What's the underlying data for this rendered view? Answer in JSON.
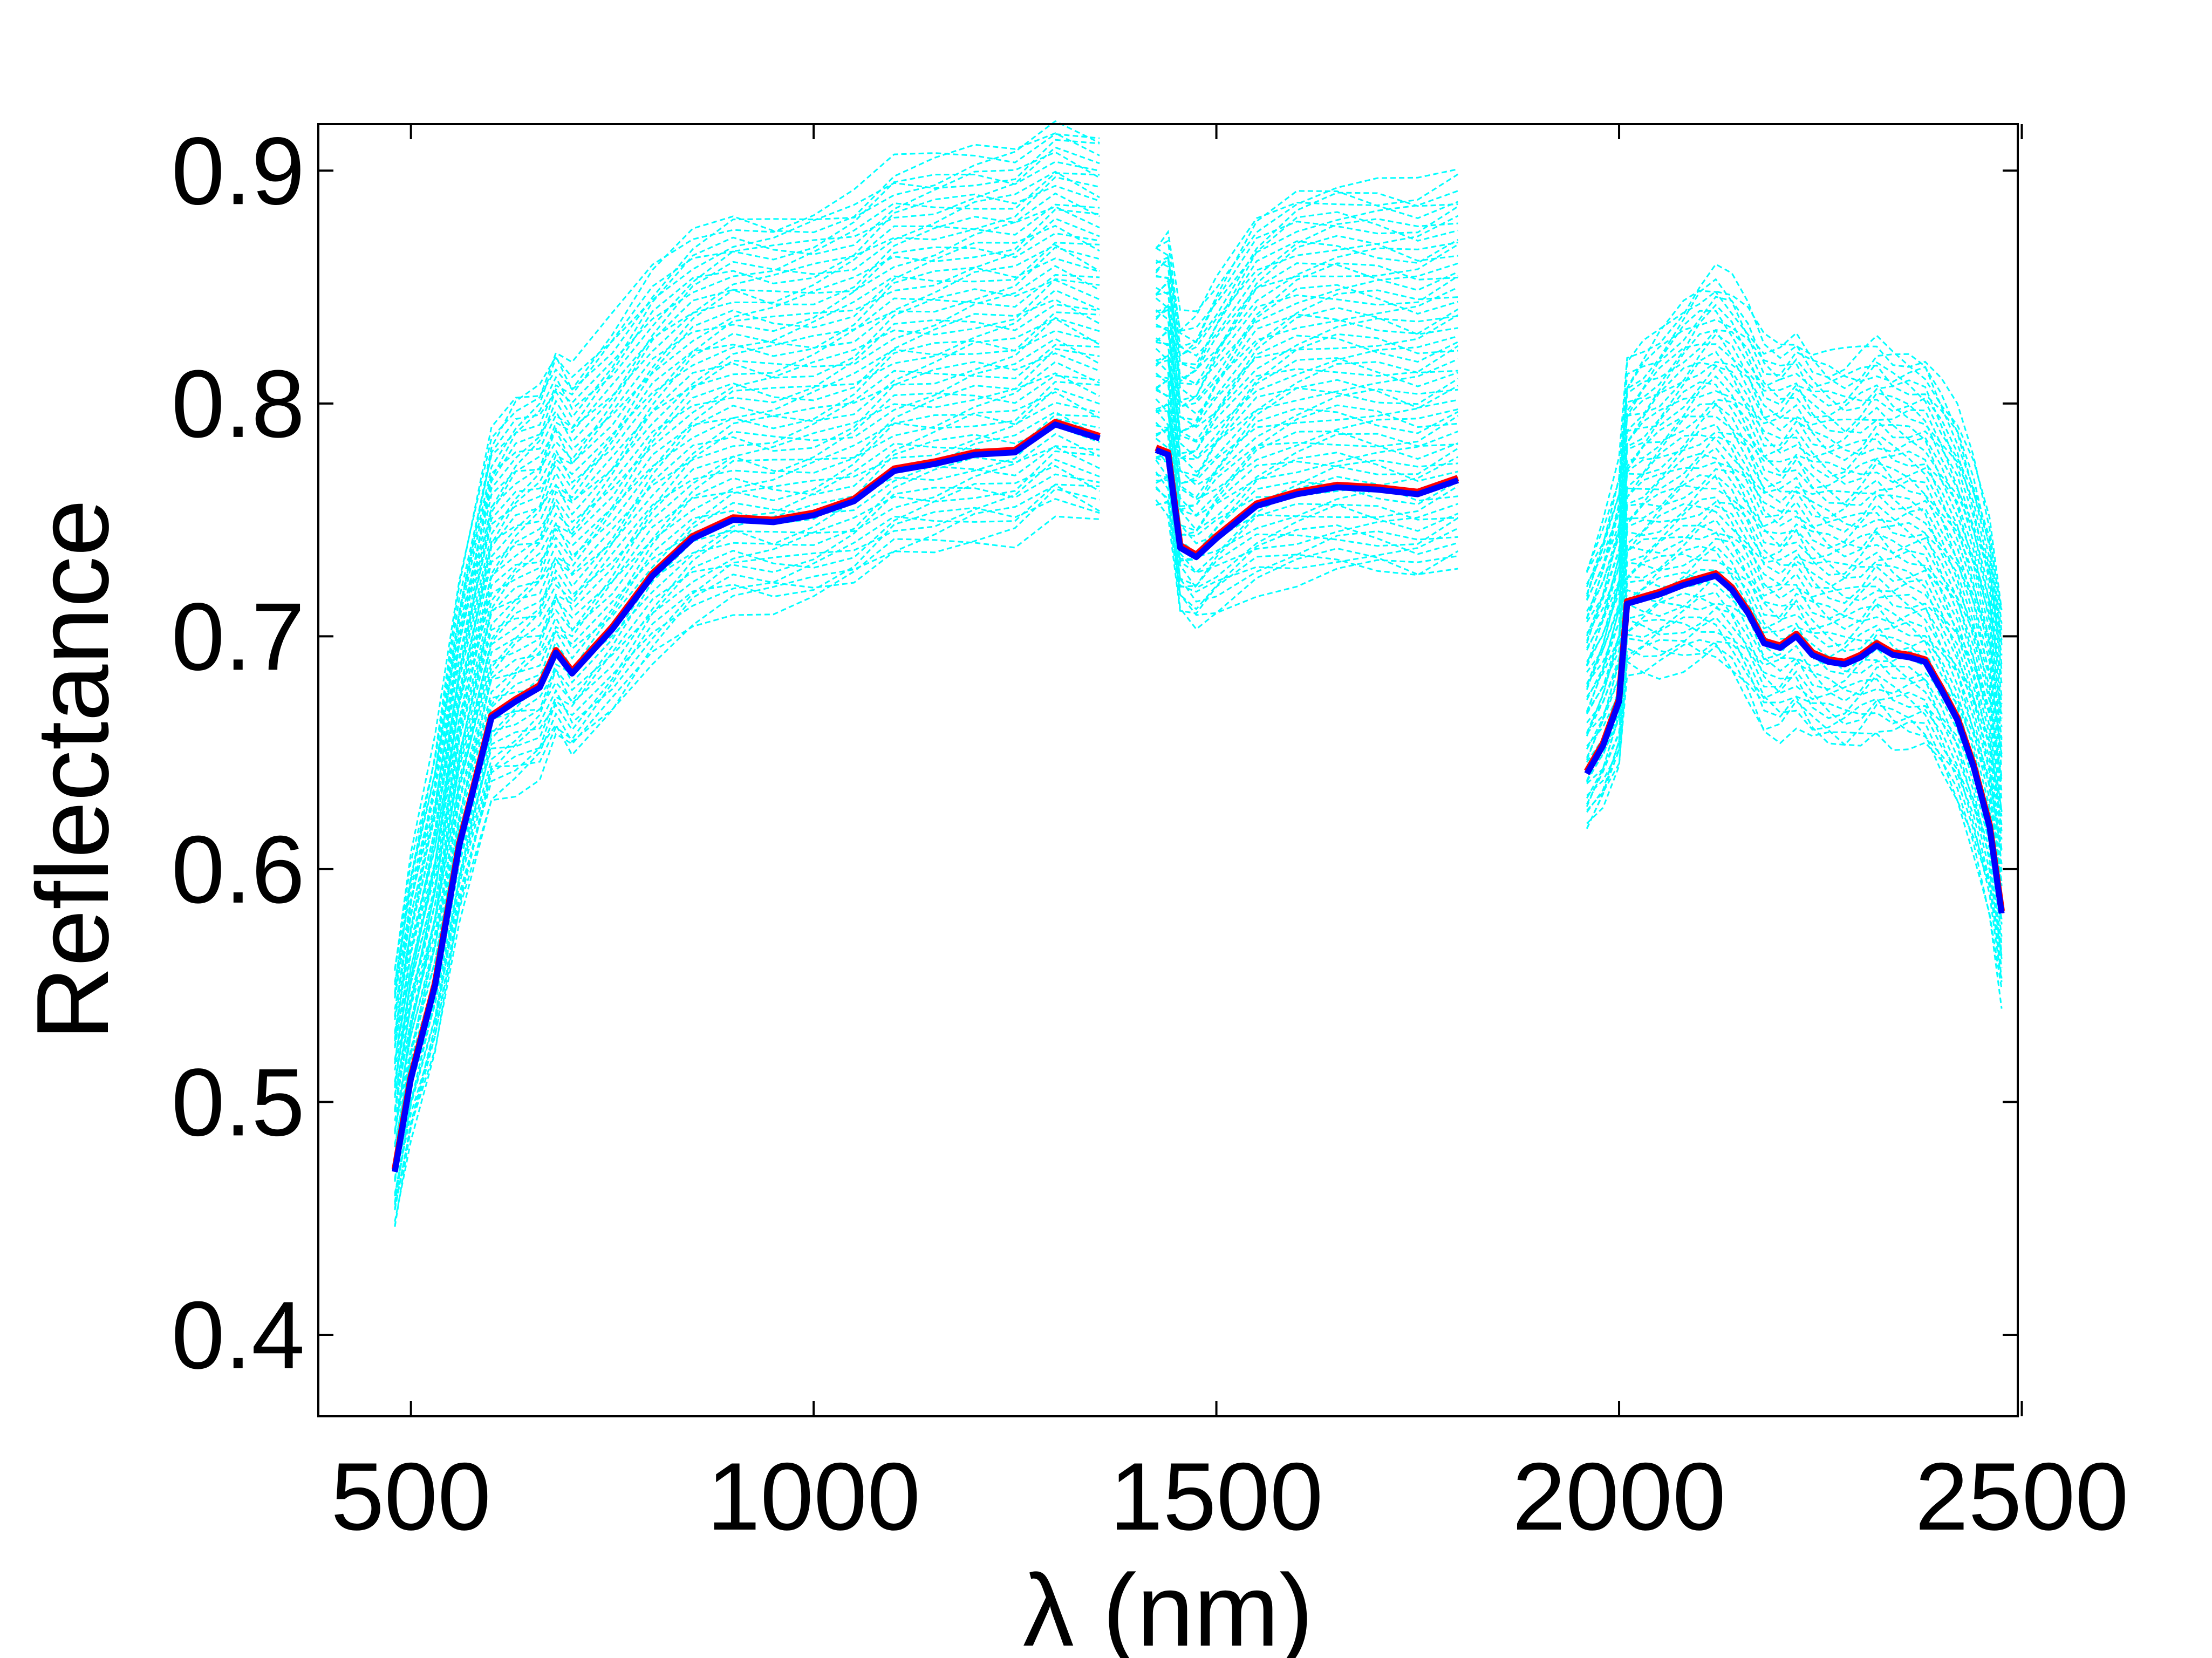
{
  "chart_data": {
    "type": "line",
    "title": "",
    "xlabel": "λ (nm)",
    "ylabel": "Reflectance",
    "xlim": [
      385,
      2495
    ],
    "ylim": [
      0.365,
      0.92
    ],
    "xticks": [
      500,
      1000,
      1500,
      2000,
      2500
    ],
    "yticks": [
      0.4,
      0.5,
      0.6,
      0.7,
      0.8,
      0.9
    ],
    "xtick_labels": [
      "500",
      "1000",
      "1500",
      "2000",
      "2500"
    ],
    "ytick_labels": [
      "0.4",
      "0.5",
      "0.6",
      "0.7",
      "0.8",
      "0.9"
    ],
    "grid": false,
    "legend": "none",
    "colors": {
      "ensemble": "#00ffff",
      "reference": "#ff0000",
      "mean": "#0000ff",
      "axes": "#000000"
    },
    "segments": [
      {
        "x": [
          480,
          500,
          530,
          560,
          600,
          630,
          660,
          680,
          700,
          750,
          800,
          850,
          900,
          950,
          1000,
          1050,
          1100,
          1150,
          1200,
          1250,
          1300,
          1355
        ],
        "y": [
          0.47,
          0.51,
          0.55,
          0.61,
          0.665,
          0.672,
          0.678,
          0.693,
          0.684,
          0.703,
          0.726,
          0.742,
          0.75,
          0.749,
          0.752,
          0.758,
          0.771,
          0.774,
          0.778,
          0.779,
          0.791,
          0.785
        ]
      },
      {
        "x": [
          1425,
          1440,
          1455,
          1475,
          1500,
          1550,
          1600,
          1650,
          1700,
          1750,
          1800
        ],
        "y": [
          0.78,
          0.778,
          0.738,
          0.734,
          0.742,
          0.756,
          0.761,
          0.764,
          0.763,
          0.761,
          0.767
        ]
      },
      {
        "x": [
          1960,
          1980,
          2000,
          2010,
          2030,
          2050,
          2080,
          2100,
          2120,
          2140,
          2160,
          2180,
          2200,
          2220,
          2240,
          2260,
          2280,
          2300,
          2320,
          2340,
          2360,
          2380,
          2400,
          2420,
          2440,
          2460,
          2475
        ],
        "y": [
          0.641,
          0.653,
          0.672,
          0.714,
          0.716,
          0.718,
          0.722,
          0.724,
          0.726,
          0.72,
          0.71,
          0.697,
          0.695,
          0.7,
          0.692,
          0.689,
          0.688,
          0.691,
          0.696,
          0.692,
          0.691,
          0.689,
          0.677,
          0.664,
          0.644,
          0.618,
          0.581
        ]
      }
    ],
    "series": [
      {
        "name": "",
        "role": "ensemble",
        "style": "dashed",
        "samples": 60,
        "spread_low": 0.035,
        "spread_high": 0.13
      },
      {
        "name": "",
        "role": "reference",
        "style": "solid",
        "offset": 0.001
      },
      {
        "name": "",
        "role": "mean",
        "style": "solid"
      }
    ]
  }
}
